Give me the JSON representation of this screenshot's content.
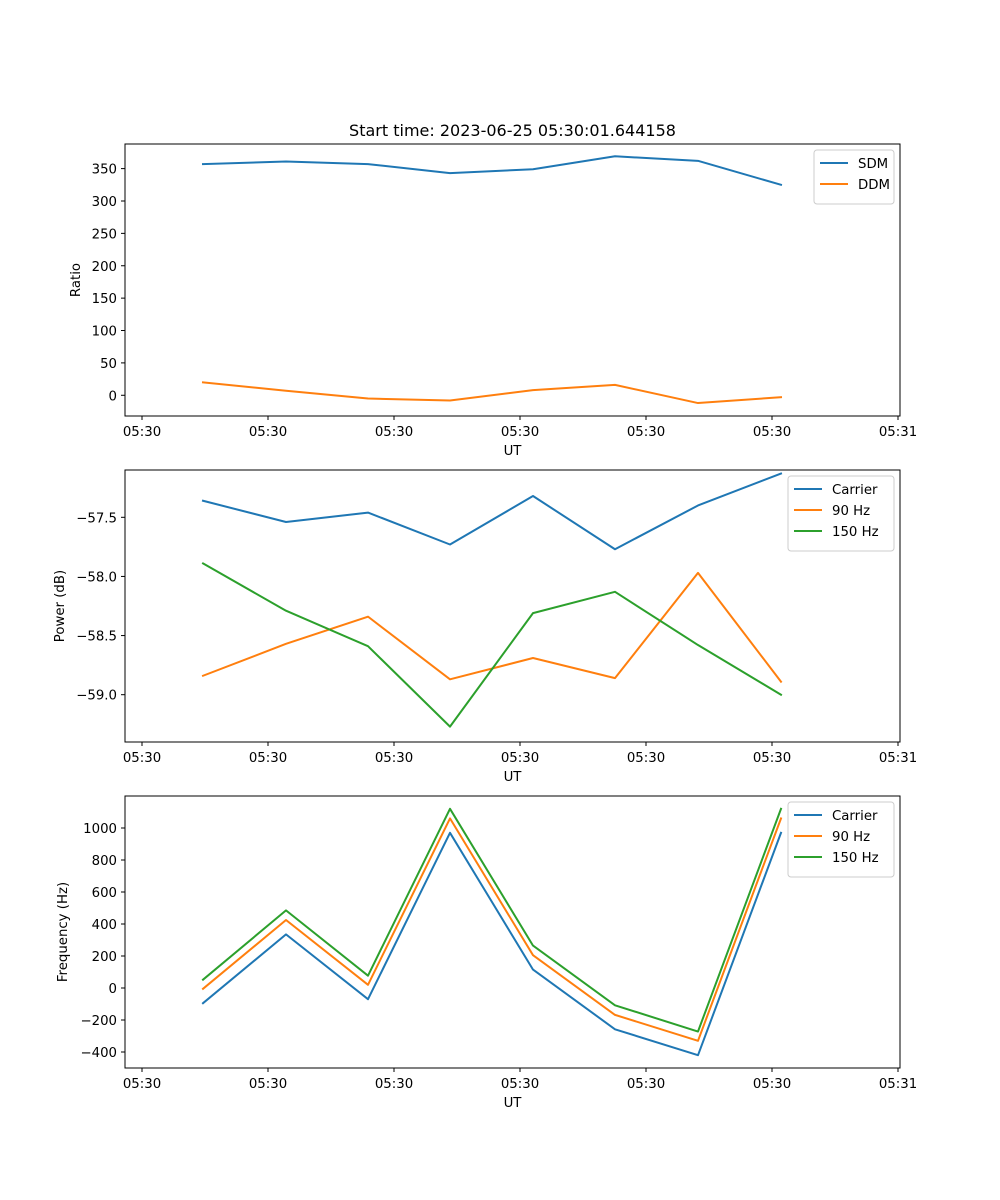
{
  "chart_data": [
    {
      "type": "line",
      "title": "Start time: 2023-06-25 05:30:01.644158",
      "xlabel": "UT",
      "ylabel": "Ratio",
      "x_tick_labels": [
        "05:30",
        "05:30",
        "05:30",
        "05:30",
        "05:30",
        "05:30",
        "05:31"
      ],
      "y_ticks": [
        0,
        50,
        100,
        150,
        200,
        250,
        300,
        350
      ],
      "ylim": [
        -32,
        388
      ],
      "legend_position": "upper right",
      "series": [
        {
          "name": "SDM",
          "color": "#1f77b4",
          "values": [
            357,
            361,
            357,
            343,
            349,
            369,
            362,
            325
          ]
        },
        {
          "name": "DDM",
          "color": "#ff7f0e",
          "values": [
            20,
            7,
            -5,
            -8,
            8,
            16,
            -12,
            -3
          ]
        }
      ]
    },
    {
      "type": "line",
      "xlabel": "UT",
      "ylabel": "Power (dB)",
      "x_tick_labels": [
        "05:30",
        "05:30",
        "05:30",
        "05:30",
        "05:30",
        "05:30",
        "05:31"
      ],
      "y_ticks": [
        -57.5,
        -58.0,
        -58.5,
        -59.0
      ],
      "y_tick_labels": [
        "−57.5",
        "−58.0",
        "−58.5",
        "−59.0"
      ],
      "ylim": [
        -59.4,
        -57.1
      ],
      "legend_position": "upper right",
      "series": [
        {
          "name": "Carrier",
          "color": "#1f77b4",
          "values": [
            -57.36,
            -57.54,
            -57.46,
            -57.73,
            -57.32,
            -57.77,
            -57.4,
            -57.13
          ]
        },
        {
          "name": "90 Hz",
          "color": "#ff7f0e",
          "values": [
            -58.84,
            -58.57,
            -58.34,
            -58.87,
            -58.69,
            -58.86,
            -57.97,
            -58.89
          ]
        },
        {
          "name": "150 Hz",
          "color": "#2ca02c",
          "values": [
            -57.89,
            -58.29,
            -58.59,
            -59.27,
            -58.31,
            -58.13,
            -58.58,
            -59.0
          ]
        }
      ]
    },
    {
      "type": "line",
      "xlabel": "UT",
      "ylabel": "Frequency (Hz)",
      "x_tick_labels": [
        "05:30",
        "05:30",
        "05:30",
        "05:30",
        "05:30",
        "05:30",
        "05:31"
      ],
      "y_ticks": [
        -400,
        -200,
        0,
        200,
        400,
        600,
        800,
        1000
      ],
      "y_tick_labels": [
        "−400",
        "−200",
        "0",
        "200",
        "400",
        "600",
        "800",
        "1000"
      ],
      "ylim": [
        -500,
        1200
      ],
      "legend_position": "upper right",
      "series": [
        {
          "name": "Carrier",
          "color": "#1f77b4",
          "values": [
            -95,
            335,
            -70,
            970,
            115,
            -258,
            -420,
            970
          ]
        },
        {
          "name": "90 Hz",
          "color": "#ff7f0e",
          "values": [
            -5,
            425,
            20,
            1060,
            205,
            -168,
            -330,
            1060
          ]
        },
        {
          "name": "150 Hz",
          "color": "#2ca02c",
          "values": [
            52,
            485,
            77,
            1120,
            265,
            -108,
            -272,
            1120
          ]
        }
      ]
    }
  ]
}
